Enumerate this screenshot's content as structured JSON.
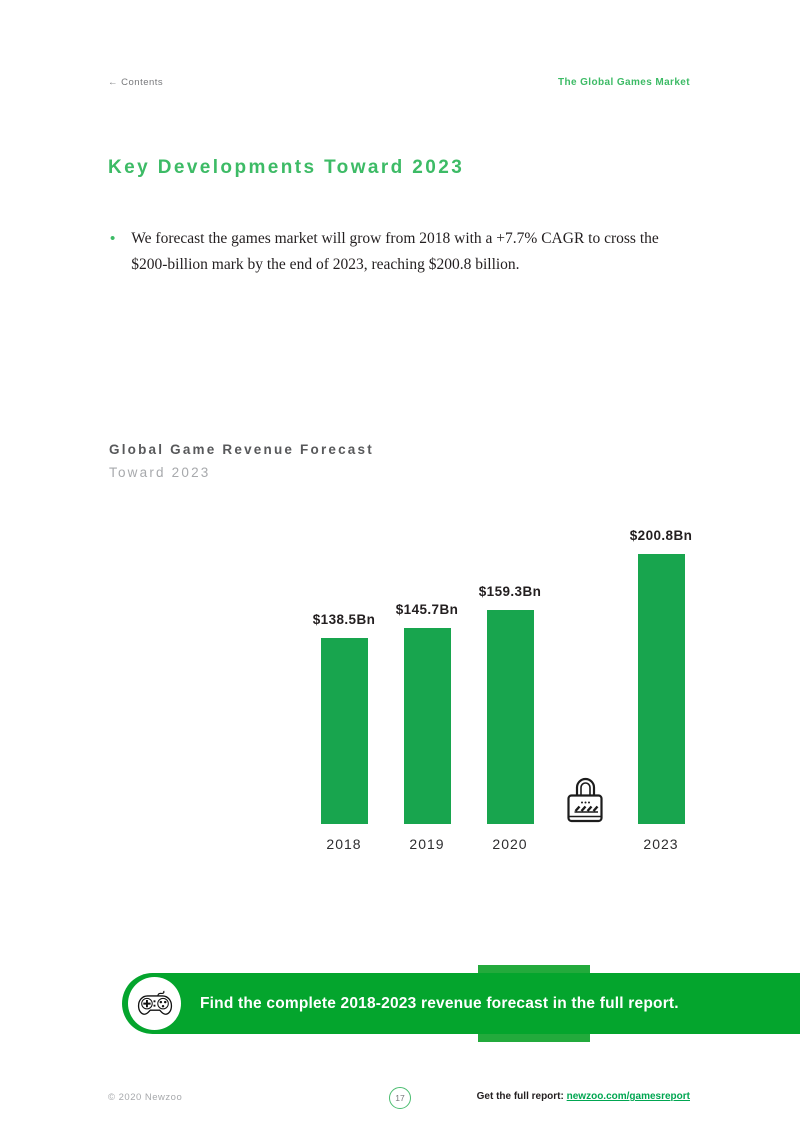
{
  "header": {
    "back": "← Contents",
    "section": "The Global Games Market"
  },
  "title": "Key Developments Toward 2023",
  "bullet": {
    "marker": "•",
    "text": "We forecast the games market will grow from 2018 with a +7.7% CAGR to cross the $200-billion mark by the end of 2023, reaching $200.8 billion."
  },
  "chart": {
    "title": "Global Game Revenue Forecast",
    "subtitle": "Toward 2023"
  },
  "chart_data": {
    "type": "bar",
    "title": "Global Game Revenue Forecast",
    "subtitle": "Toward 2023",
    "unit": "USD billions",
    "categories": [
      "2018",
      "2019",
      "2020",
      "",
      "2023"
    ],
    "values": [
      138.5,
      145.7,
      159.3,
      null,
      200.8
    ],
    "value_labels": [
      "$138.5Bn",
      "$145.7Bn",
      "$159.3Bn",
      "",
      "$200.8Bn"
    ],
    "locked_slot_index": 3,
    "ylim": [
      0,
      210
    ],
    "grid": false,
    "legend": false,
    "bar_color": "#18a54e"
  },
  "banner": {
    "text": "Find the complete 2018-2023 revenue forecast in the full report.",
    "icon": "game-controller-icon",
    "bg_color": "#04a52d"
  },
  "footer": {
    "copyright": "© 2020 Newzoo",
    "page_number": "17",
    "cta_label": "Get the full report:",
    "cta_link": "newzoo.com/gamesreport"
  },
  "colors": {
    "brand_green": "#3dbb66",
    "bar_green": "#18a54e",
    "banner_green": "#04a52d",
    "link_green": "#00a651",
    "dark_text": "#231f20",
    "gray_text": "#77787b",
    "light_gray_text": "#a7a9ac"
  }
}
